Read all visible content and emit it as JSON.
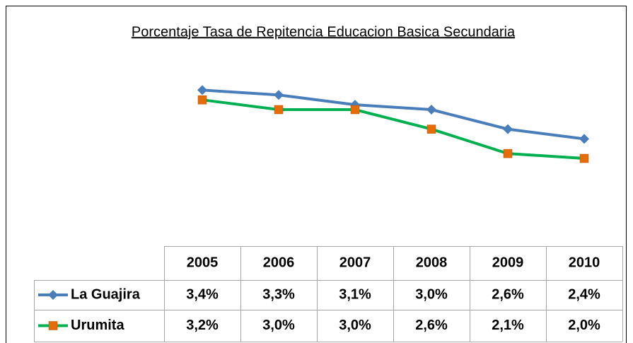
{
  "chart_data": {
    "type": "line",
    "title": "Porcentaje  Tasa de Repitencia Educacion Basica  Secundaria",
    "categories": [
      "2005",
      "2006",
      "2007",
      "2008",
      "2009",
      "2010"
    ],
    "series": [
      {
        "name": "La Guajira",
        "color": "#4a7ebb",
        "marker_color": "#4a7ebb",
        "marker": "diamond",
        "values": [
          3.4,
          3.3,
          3.1,
          3.0,
          2.6,
          2.4
        ],
        "value_labels": [
          "3,4%",
          "3,3%",
          "3,1%",
          "3,0%",
          "2,6%",
          "2,4%"
        ]
      },
      {
        "name": "Urumita",
        "color": "#00b050",
        "marker_color": "#e46c0a",
        "marker": "square",
        "values": [
          3.2,
          3.0,
          3.0,
          2.6,
          2.1,
          2.0
        ],
        "value_labels": [
          "3,2%",
          "3,0%",
          "3,0%",
          "2,6%",
          "2,1%",
          "2,0%"
        ]
      }
    ],
    "ylim": [
      0,
      4
    ]
  }
}
